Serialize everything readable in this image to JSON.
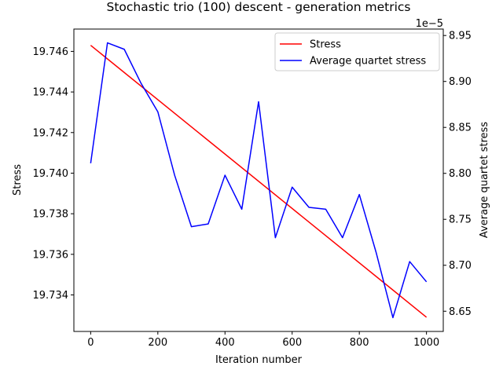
{
  "chart_data": {
    "type": "line",
    "title": "Stochastic trio (100) descent - generation metrics",
    "xlabel": "Iteration number",
    "ylabel_left": "Stress",
    "ylabel_right": "Average quartet stress",
    "right_axis_offset_text": "1e−5",
    "xlim": [
      -50,
      1050
    ],
    "ylim_left": [
      19.7322,
      19.7471
    ],
    "ylim_right": [
      8.628,
      8.957
    ],
    "x_ticks": [
      0,
      200,
      400,
      600,
      800,
      1000
    ],
    "x_tick_labels": [
      "0",
      "200",
      "400",
      "600",
      "800",
      "1000"
    ],
    "y_left_ticks": [
      19.734,
      19.736,
      19.738,
      19.74,
      19.742,
      19.744,
      19.746
    ],
    "y_left_tick_labels": [
      "19.734",
      "19.736",
      "19.738",
      "19.740",
      "19.742",
      "19.744",
      "19.746"
    ],
    "y_right_ticks": [
      8.65,
      8.7,
      8.75,
      8.8,
      8.85,
      8.9,
      8.95
    ],
    "y_right_tick_labels": [
      "8.65",
      "8.70",
      "8.75",
      "8.80",
      "8.85",
      "8.90",
      "8.95"
    ],
    "grid": false,
    "legend_position": "top-right",
    "series": [
      {
        "name": "Stress",
        "axis": "left",
        "color": "#ff0000",
        "x": [
          0,
          1000
        ],
        "values": [
          19.7463,
          19.7329
        ]
      },
      {
        "name": "Average quartet stress",
        "axis": "right",
        "color": "#0000ff",
        "x": [
          0,
          50,
          100,
          150,
          200,
          250,
          300,
          350,
          400,
          450,
          500,
          550,
          600,
          650,
          700,
          750,
          800,
          850,
          900,
          950,
          1000
        ],
        "values": [
          8.811,
          8.942,
          8.935,
          8.898,
          8.867,
          8.798,
          8.742,
          8.745,
          8.798,
          8.761,
          8.878,
          8.73,
          8.785,
          8.763,
          8.761,
          8.73,
          8.777,
          8.714,
          8.643,
          8.704,
          8.682
        ]
      }
    ]
  }
}
